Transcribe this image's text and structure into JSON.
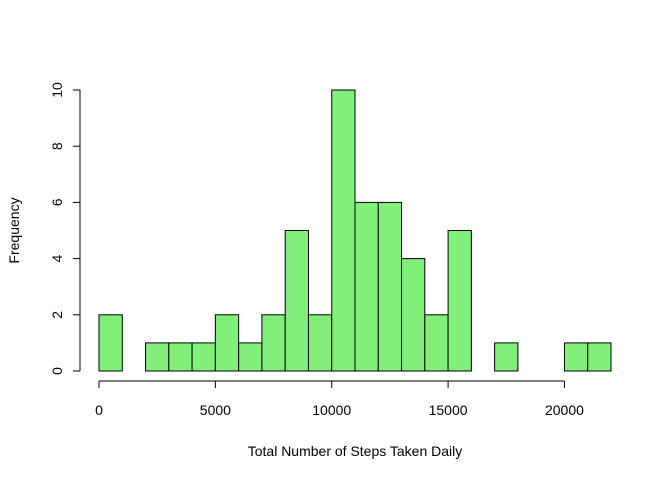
{
  "chart_data": {
    "type": "bar",
    "subtype": "histogram",
    "title": "",
    "xlabel": "Total Number of Steps Taken Daily",
    "ylabel": "Frequency",
    "bin_width": 1000,
    "bin_edges": [
      0,
      1000,
      2000,
      3000,
      4000,
      5000,
      6000,
      7000,
      8000,
      9000,
      10000,
      11000,
      12000,
      13000,
      14000,
      15000,
      16000,
      17000,
      18000,
      19000,
      20000,
      21000,
      22000
    ],
    "values": [
      2,
      0,
      1,
      1,
      1,
      2,
      1,
      2,
      5,
      2,
      10,
      6,
      6,
      4,
      2,
      5,
      0,
      1,
      0,
      0,
      1,
      1
    ],
    "xlim": [
      0,
      22000
    ],
    "ylim": [
      0,
      10
    ],
    "xticks": [
      0,
      5000,
      10000,
      15000,
      20000
    ],
    "yticks": [
      0,
      2,
      4,
      6,
      8,
      10
    ],
    "bar_color": "#82ef7a",
    "grid": false,
    "legend": "none"
  }
}
